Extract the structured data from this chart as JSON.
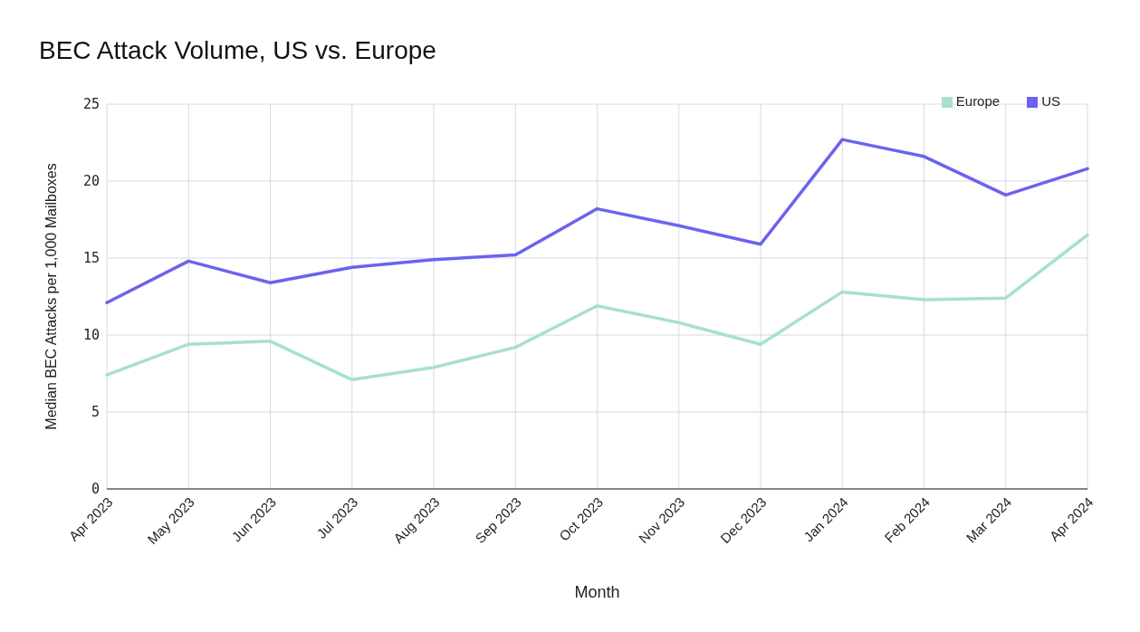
{
  "chart_data": {
    "type": "line",
    "title": "BEC Attack Volume, US vs. Europe",
    "xlabel": "Month",
    "ylabel": "Median BEC Attacks per 1,000 Mailboxes",
    "categories": [
      "Apr 2023",
      "May 2023",
      "Jun 2023",
      "Jul 2023",
      "Aug 2023",
      "Sep 2023",
      "Oct 2023",
      "Nov 2023",
      "Dec 2023",
      "Jan 2024",
      "Feb 2024",
      "Mar 2024",
      "Apr 2024"
    ],
    "series": [
      {
        "name": "US",
        "color": "#6b63ee",
        "values": [
          12.1,
          14.8,
          13.4,
          14.4,
          14.9,
          15.2,
          18.2,
          17.1,
          15.9,
          22.7,
          21.6,
          19.1,
          20.8
        ]
      },
      {
        "name": "Europe",
        "color": "#a6e0d2",
        "values": [
          7.4,
          9.4,
          9.6,
          7.1,
          7.9,
          9.2,
          11.9,
          10.8,
          9.4,
          12.8,
          12.3,
          12.4,
          16.5
        ]
      }
    ],
    "ylim": [
      0,
      25
    ],
    "yticks": [
      0,
      5,
      10,
      15,
      20,
      25
    ],
    "grid": true,
    "legend": "top right",
    "marker": "none",
    "line_style": "solid"
  }
}
